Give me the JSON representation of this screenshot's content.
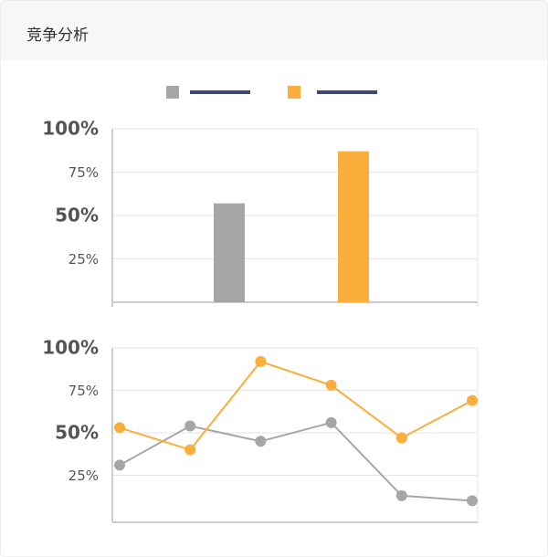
{
  "header": {
    "title": "竞争分析"
  },
  "chart_data": [
    {
      "type": "bar",
      "categories": [
        null,
        null
      ],
      "values": [
        57,
        87
      ],
      "colors": [
        "#a6a6a6",
        "#fbae3c"
      ],
      "ylim": [
        0,
        100
      ],
      "yticks": [
        {
          "value": 25,
          "label": "25%"
        },
        {
          "value": 50,
          "label": "50%"
        },
        {
          "value": 75,
          "label": "75%"
        },
        {
          "value": 100,
          "label": "100%"
        }
      ],
      "grid": true
    },
    {
      "type": "line",
      "categories": [
        null,
        null,
        null,
        null,
        null,
        null
      ],
      "series": [
        {
          "color": "#a6a6a6",
          "values": [
            31,
            54,
            45,
            56,
            13,
            10
          ]
        },
        {
          "color": "#fbae3c",
          "values": [
            53,
            40,
            92,
            78,
            47,
            69
          ]
        }
      ],
      "ylim": [
        0,
        100
      ],
      "yticks": [
        {
          "value": 25,
          "label": "25%"
        },
        {
          "value": 50,
          "label": "50%"
        },
        {
          "value": 75,
          "label": "75%"
        },
        {
          "value": 100,
          "label": "100%"
        }
      ],
      "grid": true
    }
  ]
}
